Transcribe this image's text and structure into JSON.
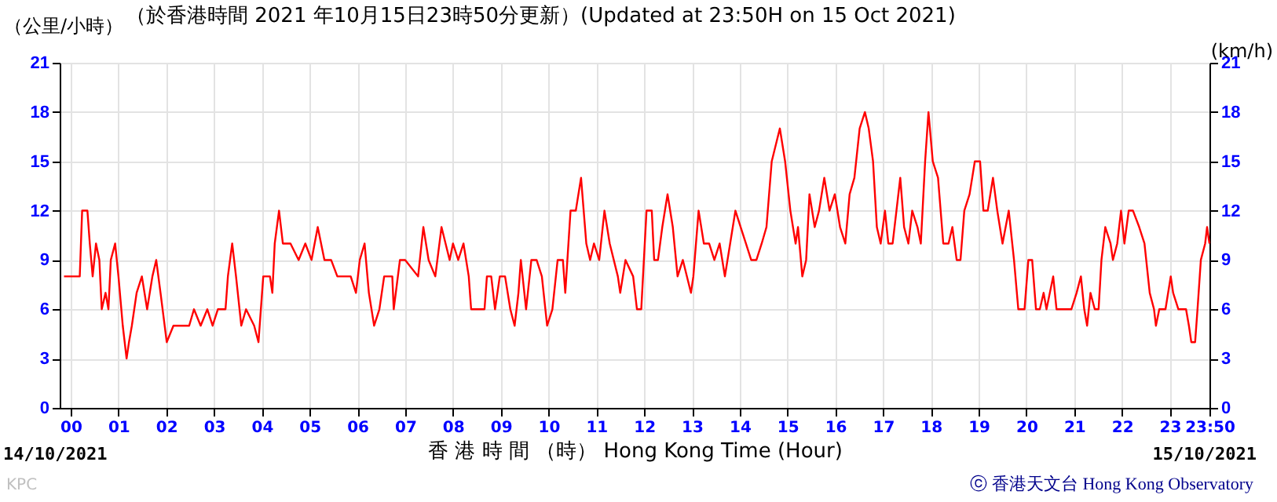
{
  "chart_data": {
    "type": "line",
    "title": "（於香港時間 2021 年10月15日23時50分更新）(Updated at 23:50H on 15 Oct 2021)",
    "ylabel": "（公里/小時）",
    "y2label": "(km/h)",
    "xlabel": "香 港 時 間 （時） Hong Kong Time (Hour)",
    "annotations": [
      "14/10/2021",
      "15/10/2021",
      "KPC",
      "ⓒ 香港天文台 Hong Kong Observatory"
    ],
    "xlim": [
      -0.23,
      23.83
    ],
    "xticks": [
      {
        "value": 0,
        "label": "00"
      },
      {
        "value": 1,
        "label": "01"
      },
      {
        "value": 2,
        "label": "02"
      },
      {
        "value": 3,
        "label": "03"
      },
      {
        "value": 4,
        "label": "04"
      },
      {
        "value": 5,
        "label": "05"
      },
      {
        "value": 6,
        "label": "06"
      },
      {
        "value": 7,
        "label": "07"
      },
      {
        "value": 8,
        "label": "08"
      },
      {
        "value": 9,
        "label": "09"
      },
      {
        "value": 10,
        "label": "10"
      },
      {
        "value": 11,
        "label": "11"
      },
      {
        "value": 12,
        "label": "12"
      },
      {
        "value": 13,
        "label": "13"
      },
      {
        "value": 14,
        "label": "14"
      },
      {
        "value": 15,
        "label": "15"
      },
      {
        "value": 16,
        "label": "16"
      },
      {
        "value": 17,
        "label": "17"
      },
      {
        "value": 18,
        "label": "18"
      },
      {
        "value": 19,
        "label": "19"
      },
      {
        "value": 20,
        "label": "20"
      },
      {
        "value": 21,
        "label": "21"
      },
      {
        "value": 22,
        "label": "22"
      },
      {
        "value": 23,
        "label": "23"
      },
      {
        "value": 23.83,
        "label": "23:50"
      }
    ],
    "ylim": [
      0,
      21
    ],
    "yticks": [
      0,
      3,
      6,
      9,
      12,
      15,
      18,
      21
    ],
    "y2lim": [
      0,
      21
    ],
    "y2ticks": [
      0,
      3,
      6,
      9,
      12,
      15,
      18,
      21
    ],
    "grid": true,
    "marker": "none",
    "line_style": "solid",
    "series": [
      {
        "color": "#ff0000",
        "x": [
          -0.14,
          0.19,
          0.24,
          0.35,
          0.4,
          0.46,
          0.53,
          0.6,
          0.65,
          0.73,
          0.79,
          0.84,
          0.93,
          1.0,
          1.09,
          1.17,
          1.22,
          1.28,
          1.38,
          1.49,
          1.6,
          1.71,
          1.79,
          1.88,
          2.01,
          2.15,
          2.48,
          2.58,
          2.72,
          2.86,
          2.97,
          3.08,
          3.24,
          3.29,
          3.38,
          3.46,
          3.57,
          3.67,
          3.84,
          3.93,
          4.03,
          4.17,
          4.22,
          4.27,
          4.36,
          4.44,
          4.6,
          4.77,
          4.91,
          5.04,
          5.17,
          5.31,
          5.45,
          5.58,
          5.86,
          5.97,
          6.05,
          6.15,
          6.24,
          6.35,
          6.46,
          6.56,
          6.73,
          6.76,
          6.89,
          7.0,
          7.27,
          7.38,
          7.49,
          7.63,
          7.76,
          7.93,
          8.0,
          8.11,
          8.22,
          8.33,
          8.38,
          8.66,
          8.71,
          8.8,
          8.88,
          8.98,
          9.09,
          9.2,
          9.29,
          9.37,
          9.42,
          9.53,
          9.64,
          9.75,
          9.86,
          9.97,
          10.08,
          10.19,
          10.3,
          10.35,
          10.46,
          10.57,
          10.68,
          10.79,
          10.87,
          10.95,
          11.06,
          11.17,
          11.28,
          11.45,
          11.5,
          11.61,
          11.77,
          11.85,
          11.94,
          12.05,
          12.16,
          12.21,
          12.29,
          12.38,
          12.49,
          12.6,
          12.7,
          12.81,
          12.98,
          13.03,
          13.14,
          13.25,
          13.36,
          13.47,
          13.58,
          13.69,
          13.8,
          13.91,
          14.02,
          14.13,
          14.24,
          14.35,
          14.46,
          14.56,
          14.67,
          14.84,
          14.95,
          15.06,
          15.17,
          15.22,
          15.31,
          15.39,
          15.46,
          15.57,
          15.66,
          15.77,
          15.88,
          15.99,
          16.1,
          16.21,
          16.3,
          16.4,
          16.51,
          16.62,
          16.7,
          16.79,
          16.87,
          16.95,
          17.04,
          17.11,
          17.2,
          17.28,
          17.36,
          17.44,
          17.53,
          17.61,
          17.72,
          17.79,
          17.88,
          17.95,
          18.04,
          18.15,
          18.26,
          18.37,
          18.45,
          18.54,
          18.62,
          18.7,
          18.81,
          18.92,
          19.03,
          19.1,
          19.19,
          19.3,
          19.39,
          19.5,
          19.63,
          19.74,
          19.83,
          19.96,
          20.04,
          20.12,
          20.2,
          20.28,
          20.36,
          20.42,
          20.56,
          20.63,
          20.94,
          21.05,
          21.14,
          21.21,
          21.27,
          21.34,
          21.43,
          21.51,
          21.57,
          21.65,
          21.76,
          21.81,
          21.9,
          21.98,
          22.05,
          22.14,
          22.23,
          22.36,
          22.47,
          22.58,
          22.67,
          22.71,
          22.78,
          22.91,
          23.02,
          23.07,
          23.18,
          23.34,
          23.4,
          23.45,
          23.53,
          23.58,
          23.65,
          23.74,
          23.78,
          23.83
        ],
        "values": [
          8,
          8,
          12,
          12,
          10,
          8,
          10,
          9,
          6,
          7,
          6,
          9,
          10,
          8,
          5,
          3,
          4,
          5,
          7,
          8,
          6,
          8,
          9,
          7,
          4,
          5,
          5,
          6,
          5,
          6,
          5,
          6,
          6,
          8,
          10,
          8,
          5,
          6,
          5,
          4,
          8,
          8,
          7,
          10,
          12,
          10,
          10,
          9,
          10,
          9,
          11,
          9,
          9,
          8,
          8,
          7,
          9,
          10,
          7,
          5,
          6,
          8,
          8,
          6,
          9,
          9,
          8,
          11,
          9,
          8,
          11,
          9,
          10,
          9,
          10,
          8,
          6,
          6,
          8,
          8,
          6,
          8,
          8,
          6,
          5,
          7,
          9,
          6,
          9,
          9,
          8,
          5,
          6,
          9,
          9,
          7,
          12,
          12,
          14,
          10,
          9,
          10,
          9,
          12,
          10,
          8,
          7,
          9,
          8,
          6,
          6,
          12,
          12,
          9,
          9,
          11,
          13,
          11,
          8,
          9,
          7,
          8,
          12,
          10,
          10,
          9,
          10,
          8,
          10,
          12,
          11,
          10,
          9,
          9,
          10,
          11,
          15,
          17,
          15,
          12,
          10,
          11,
          8,
          9,
          13,
          11,
          12,
          14,
          12,
          13,
          11,
          10,
          13,
          14,
          17,
          18,
          17,
          15,
          11,
          10,
          12,
          10,
          10,
          12,
          14,
          11,
          10,
          12,
          11,
          10,
          15,
          18,
          15,
          14,
          10,
          10,
          11,
          9,
          9,
          12,
          13,
          15,
          15,
          12,
          12,
          14,
          12,
          10,
          12,
          9,
          6,
          6,
          9,
          9,
          6,
          6,
          7,
          6,
          8,
          6,
          6,
          7,
          8,
          6,
          5,
          7,
          6,
          6,
          9,
          11,
          10,
          9,
          10,
          12,
          10,
          12,
          12,
          11,
          10,
          7,
          6,
          5,
          6,
          6,
          8,
          7,
          6,
          6,
          5,
          4,
          4,
          6,
          9,
          10,
          11,
          10
        ]
      }
    ]
  }
}
